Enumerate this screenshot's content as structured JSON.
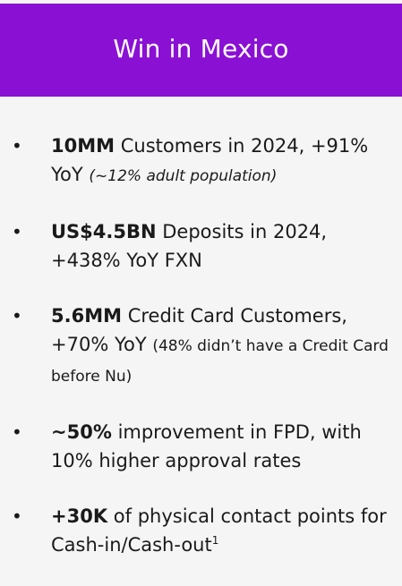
{
  "colors": {
    "header_background": "#8a10d4",
    "panel_background": "#f5f5f5",
    "text": "#1a1a1a"
  },
  "header": {
    "title": "Win in Mexico"
  },
  "bullet_symbol": "•",
  "items": [
    {
      "highlight": "10MM",
      "text": "Customers in 2024, +91% YoY",
      "note": "(~12% adult population)"
    },
    {
      "highlight": "US$4.5BN",
      "text": "Deposits in 2024, +438% YoY FXN"
    },
    {
      "highlight": "5.6MM",
      "text": "Credit Card Customers, +70% YoY",
      "note": "(48% didn’t have a Credit Card before Nu)"
    },
    {
      "highlight": "~50%",
      "text": "improvement in FPD, with 10% higher approval rates"
    },
    {
      "highlight": "+30K",
      "text": "of physical contact points for Cash-in/Cash-out",
      "footnote": "1"
    }
  ]
}
